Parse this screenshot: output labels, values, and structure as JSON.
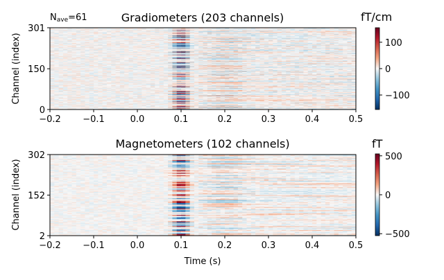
{
  "annotation": {
    "prefix": "N",
    "subscript": "ave",
    "suffix": "=61"
  },
  "chart_data": [
    {
      "type": "heatmap",
      "title": "Gradiometers (203 channels)",
      "xlabel": "",
      "ylabel": "Channel (index)",
      "x_range": [
        -0.2,
        0.5
      ],
      "x_ticks": [
        -0.2,
        -0.1,
        0.0,
        0.1,
        0.2,
        0.3,
        0.4,
        0.5
      ],
      "x_tick_labels": [
        "−0.2",
        "−0.1",
        "0.0",
        "0.1",
        "0.2",
        "0.3",
        "0.4",
        "0.5"
      ],
      "y_range": [
        0,
        301
      ],
      "y_ticks": [
        0,
        150,
        301
      ],
      "y_tick_labels": [
        "0",
        "150",
        "301"
      ],
      "colormap": "RdBu_r",
      "colorbar": {
        "unit": "fT/cm",
        "range": [
          -155,
          155
        ],
        "ticks": [
          -100,
          0,
          100
        ],
        "tick_labels": [
          "−100",
          "0",
          "100"
        ]
      },
      "rows": 203,
      "response_peak_time_s": 0.1
    },
    {
      "type": "heatmap",
      "title": "Magnetometers (102 channels)",
      "xlabel": "Time (s)",
      "ylabel": "Channel (index)",
      "x_range": [
        -0.2,
        0.5
      ],
      "x_ticks": [
        -0.2,
        -0.1,
        0.0,
        0.1,
        0.2,
        0.3,
        0.4,
        0.5
      ],
      "x_tick_labels": [
        "−0.2",
        "−0.1",
        "0.0",
        "0.1",
        "0.2",
        "0.3",
        "0.4",
        "0.5"
      ],
      "y_range": [
        2,
        302
      ],
      "y_ticks": [
        2,
        152,
        302
      ],
      "y_tick_labels": [
        "2",
        "152",
        "302"
      ],
      "colormap": "RdBu_r",
      "colorbar": {
        "unit": "fT",
        "range": [
          -525,
          525
        ],
        "ticks": [
          -500,
          0,
          500
        ],
        "tick_labels": [
          "−500",
          "0",
          "500"
        ]
      },
      "rows": 102,
      "response_peak_time_s": 0.1
    }
  ]
}
